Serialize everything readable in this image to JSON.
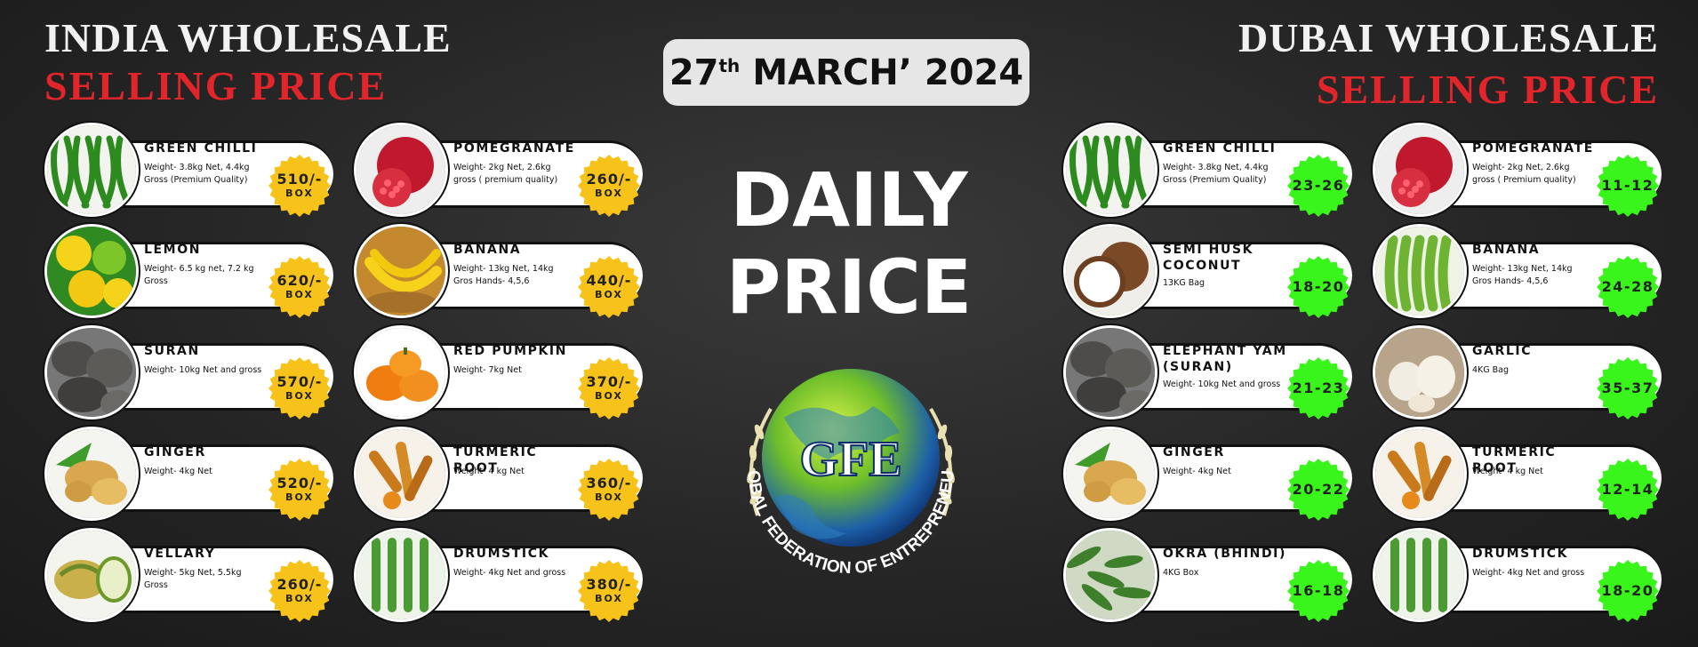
{
  "india": {
    "title": "INDIA WHOLESALE",
    "subtitle": "SELLING PRICE"
  },
  "dubai": {
    "title": "DUBAI WHOLESALE",
    "subtitle": "SELLING PRICE"
  },
  "date": {
    "day": "27",
    "suffix": "th",
    "rest": "MARCH’ 2024"
  },
  "headline": {
    "line1": "DAILY",
    "line2": "PRICE"
  },
  "logo": {
    "text": "GFE",
    "ring": "GLOBAL FEDERATION OF ENTREPRENEURS"
  },
  "colors": {
    "red_heading": "#e1252b",
    "india_badge": "#f7c21a",
    "dubai_badge": "#39f51b",
    "background": "#262626"
  },
  "india_items": [
    {
      "name": "GREEN CHILLI",
      "desc": "Weight- 3.8kg Net, 4.4kg Gross (Premium Quality)",
      "price": "510/-",
      "unit": "BOX",
      "icon": "green-chilli-image"
    },
    {
      "name": "LEMON",
      "desc": "Weight- 6.5 kg net, 7.2 kg Gross",
      "price": "620/-",
      "unit": "BOX",
      "icon": "lemon-image"
    },
    {
      "name": "SURAN",
      "desc": "Weight- 10kg Net and gross",
      "price": "570/-",
      "unit": "BOX",
      "icon": "suran-image"
    },
    {
      "name": "GINGER",
      "desc": "Weight- 4kg Net",
      "price": "520/-",
      "unit": "BOX",
      "icon": "ginger-image"
    },
    {
      "name": "VELLARY",
      "desc": "Weight- 5kg Net, 5.5kg Gross",
      "price": "260/-",
      "unit": "BOX",
      "icon": "vellary-image"
    },
    {
      "name": "POMEGRANATE",
      "desc": "Weight- 2kg Net, 2.6kg gross ( premium quality)",
      "price": "260/-",
      "unit": "BOX",
      "icon": "pomegranate-image"
    },
    {
      "name": "BANANA",
      "desc": "Weight- 13kg Net, 14kg Gros Hands- 4,5,6",
      "price": "440/-",
      "unit": "BOX",
      "icon": "banana-image"
    },
    {
      "name": "RED PUMPKIN",
      "desc": "Weight- 7kg Net",
      "price": "370/-",
      "unit": "BOX",
      "icon": "pumpkin-image"
    },
    {
      "name": "TURMERIC ROOT",
      "desc": "Weight- 4 kg Net",
      "price": "360/-",
      "unit": "BOX",
      "icon": "turmeric-image"
    },
    {
      "name": "DRUMSTICK",
      "desc": "Weight- 4kg Net and gross",
      "price": "380/-",
      "unit": "BOX",
      "icon": "drumstick-image"
    }
  ],
  "dubai_items": [
    {
      "name": "GREEN CHILLI",
      "desc": "Weight- 3.8kg Net, 4.4kg Gross (Premium Quality)",
      "price": "23-26",
      "icon": "green-chilli-image"
    },
    {
      "name": "SEMI HUSK COCONUT",
      "desc": "13KG Bag",
      "price": "18-20",
      "icon": "coconut-image"
    },
    {
      "name": "ELEPHANT YAM (SURAN)",
      "desc": "Weight- 10kg Net and gross",
      "price": "21-23",
      "icon": "suran-image"
    },
    {
      "name": "GINGER",
      "desc": "Weight- 4kg Net",
      "price": "20-22",
      "icon": "ginger-image"
    },
    {
      "name": "OKRA (BHINDI)",
      "desc": "4KG Box",
      "price": "16-18",
      "icon": "okra-image"
    },
    {
      "name": "POMEGRANATE",
      "desc": "Weight- 2kg Net, 2.6kg gross ( Premium quality)",
      "price": "11-12",
      "icon": "pomegranate-image"
    },
    {
      "name": "BANANA",
      "desc": "Weight- 13kg Net, 14kg Gros Hands- 4,5,6",
      "price": "24-28",
      "icon": "green-banana-image"
    },
    {
      "name": "GARLIC",
      "desc": "4KG Bag",
      "price": "35-37",
      "icon": "garlic-image"
    },
    {
      "name": "TURMERIC ROOT",
      "desc": "Weight- 4 kg Net",
      "price": "12-14",
      "icon": "turmeric-image"
    },
    {
      "name": "DRUMSTICK",
      "desc": "Weight- 4kg Net and gross",
      "price": "18-20",
      "icon": "drumstick-image"
    }
  ]
}
